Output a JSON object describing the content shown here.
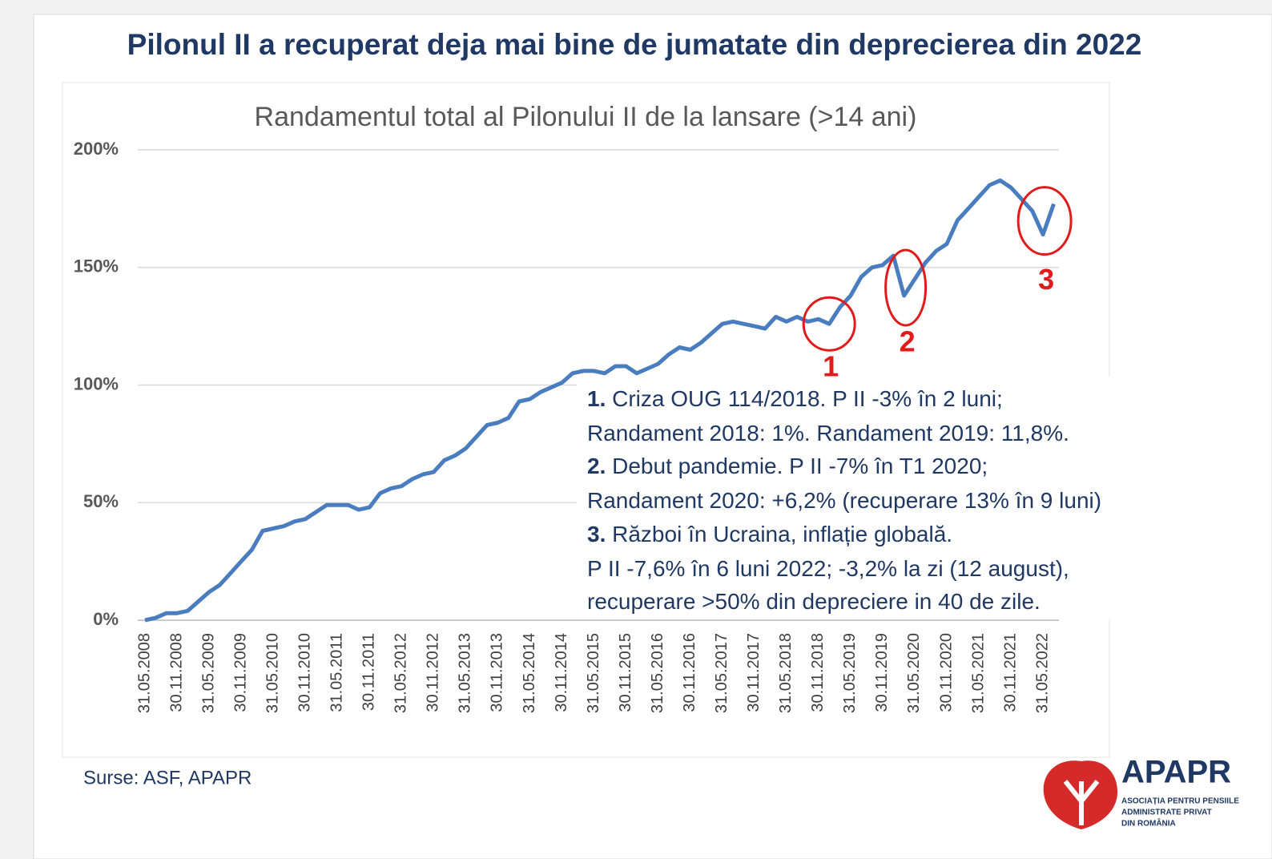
{
  "slide_title": "Pilonul II a recuperat deja mai bine de jumatate din deprecierea din 2022",
  "chart_data": {
    "type": "line",
    "title": "Randamentul total al Pilonului II de la lansare (>14 ani)",
    "categories": [
      "31.05.2008",
      null,
      null,
      "30.11.2008",
      null,
      null,
      "31.05.2009",
      null,
      null,
      "30.11.2009",
      null,
      null,
      "31.05.2010",
      null,
      null,
      "30.11.2010",
      null,
      null,
      "31.05.2011",
      null,
      null,
      "30.11.2011",
      null,
      null,
      "31.05.2012",
      null,
      null,
      "30.11.2012",
      null,
      null,
      "31.05.2013",
      null,
      null,
      "30.11.2013",
      null,
      null,
      "31.05.2014",
      null,
      null,
      "30.11.2014",
      null,
      null,
      "31.05.2015",
      null,
      null,
      "30.11.2015",
      null,
      null,
      "31.05.2016",
      null,
      null,
      "30.11.2016",
      null,
      null,
      "31.05.2017",
      null,
      null,
      "30.11.2017",
      null,
      null,
      "31.05.2018",
      null,
      null,
      "30.11.2018",
      null,
      null,
      "31.05.2019",
      null,
      null,
      "30.11.2019",
      null,
      null,
      "31.05.2020",
      null,
      null,
      "30.11.2020",
      null,
      null,
      "31.05.2021",
      null,
      null,
      "30.11.2021",
      null,
      null,
      "31.05.2022",
      null
    ],
    "series": [
      {
        "name": "Randament total",
        "color": "#4a7dbf",
        "values": [
          0,
          1,
          3,
          3,
          4,
          8,
          12,
          15,
          20,
          25,
          30,
          38,
          39,
          40,
          42,
          43,
          46,
          49,
          49,
          49,
          47,
          48,
          54,
          56,
          57,
          60,
          62,
          63,
          68,
          70,
          73,
          78,
          83,
          84,
          86,
          93,
          94,
          97,
          99,
          101,
          105,
          106,
          106,
          105,
          108,
          108,
          105,
          107,
          109,
          113,
          116,
          115,
          118,
          122,
          126,
          127,
          126,
          125,
          124,
          129,
          127,
          129,
          127,
          128,
          126,
          133,
          138,
          146,
          150,
          151,
          155,
          138,
          145,
          152,
          157,
          160,
          170,
          175,
          180,
          185,
          187,
          184,
          179,
          174,
          164,
          177
        ]
      }
    ],
    "ylim": [
      0,
      200
    ],
    "yticks": [
      {
        "value": 0,
        "label": "0%"
      },
      {
        "value": 50,
        "label": "50%"
      },
      {
        "value": 100,
        "label": "100%"
      },
      {
        "value": 150,
        "label": "150%"
      },
      {
        "value": 200,
        "label": "200%"
      }
    ],
    "grid": true,
    "annotations": [
      {
        "label": "1",
        "index": 64
      },
      {
        "label": "2",
        "index": 71
      },
      {
        "label": "3",
        "index": 84
      }
    ],
    "notes": [
      {
        "number": "1.",
        "text": " Criza OUG 114/2018. P II -3% în 2 luni;"
      },
      {
        "text": "Randament 2018: 1%. Randament 2019: 11,8%."
      },
      {
        "number": "2.",
        "text": " Debut pandemie. P II -7% în T1 2020;"
      },
      {
        "text": "Randament 2020: +6,2% (recuperare 13% în 9 luni)"
      },
      {
        "number": "3.",
        "text": " Război în Ucraina, inflație globală."
      },
      {
        "text": "P II -7,6% în 6 luni 2022; -3,2% la zi (12 august),"
      },
      {
        "text": "recuperare >50% din depreciere in 40 de zile."
      }
    ]
  },
  "source": "Surse: ASF, APAPR",
  "logo": {
    "name": "APAPR",
    "lines": [
      "ASOCIAȚIA PENTRU PENSIILE",
      "ADMINISTRATE PRIVAT",
      "DIN ROMÂNIA"
    ]
  }
}
